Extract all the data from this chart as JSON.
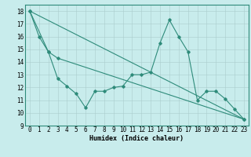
{
  "xlabel": "Humidex (Indice chaleur)",
  "bg_color": "#c8ecec",
  "line_color": "#2e8b7a",
  "xlim": [
    -0.5,
    23.5
  ],
  "ylim": [
    9,
    18.5
  ],
  "xticks": [
    0,
    1,
    2,
    3,
    4,
    5,
    6,
    7,
    8,
    9,
    10,
    11,
    12,
    13,
    14,
    15,
    16,
    17,
    18,
    19,
    20,
    21,
    22,
    23
  ],
  "yticks": [
    9,
    10,
    11,
    12,
    13,
    14,
    15,
    16,
    17,
    18
  ],
  "series1_x": [
    0,
    1,
    2,
    3,
    4,
    5,
    6,
    7,
    8,
    9,
    10,
    11,
    12,
    13,
    14,
    15,
    16,
    17,
    18,
    19,
    20,
    21,
    22,
    23
  ],
  "series1_y": [
    18.0,
    16.0,
    14.8,
    12.7,
    12.1,
    11.5,
    10.4,
    11.7,
    11.7,
    12.0,
    12.1,
    13.0,
    13.0,
    13.2,
    15.5,
    17.3,
    16.0,
    14.8,
    11.0,
    11.7,
    11.7,
    11.1,
    10.3,
    9.5
  ],
  "series2_x": [
    0,
    2,
    3,
    23
  ],
  "series2_y": [
    18.0,
    14.8,
    14.3,
    9.5
  ],
  "series3_x": [
    0,
    23
  ],
  "series3_y": [
    18.0,
    9.5
  ],
  "font_size_label": 6,
  "font_size_tick": 5.5
}
